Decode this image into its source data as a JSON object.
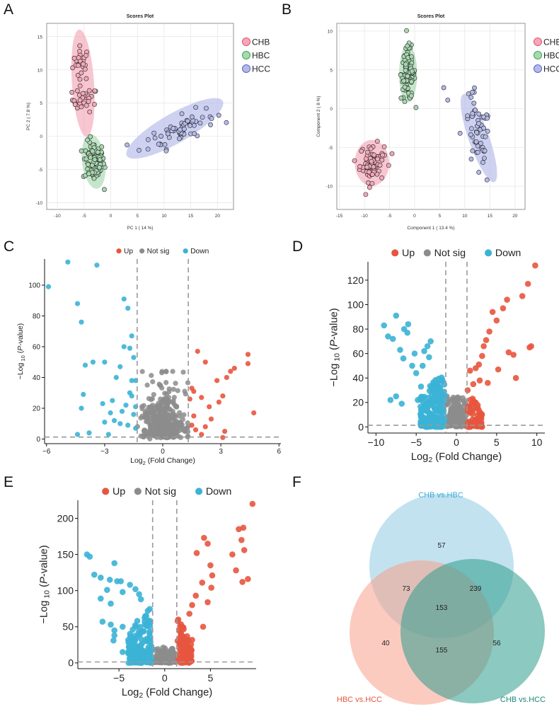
{
  "colors": {
    "chb": "#e8506e",
    "chb_fill": "#f2a8b8",
    "hbc": "#3aa655",
    "hbc_fill": "#a8d8b0",
    "hcc": "#5a66c8",
    "hcc_fill": "#b4bae8",
    "up": "#e8553e",
    "notsig": "#8c8c8c",
    "down": "#3bb2d6",
    "venn_a": "#8fcbe4",
    "venn_b": "#f7a08a",
    "venn_c": "#2e9c8c",
    "venn_a_text": "#3aaad8",
    "venn_b_text": "#e8553e",
    "venn_c_text": "#1a8878"
  },
  "chart_data": [
    {
      "panel": "A",
      "type": "scatter",
      "title": "Scores Plot",
      "xlabel": "PC 1 ( 14 %)",
      "ylabel": "PC 2 ( 7.8 %)",
      "xlim": [
        -12,
        23
      ],
      "ylim": [
        -11,
        17
      ],
      "xticks": [
        -10,
        -5,
        0,
        5,
        10,
        15,
        20
      ],
      "yticks": [
        -10,
        -5,
        0,
        5,
        10,
        15
      ],
      "legend": [
        "CHB",
        "HBC",
        "HCC"
      ],
      "groups": [
        {
          "name": "CHB",
          "clusters": [
            {
              "cx": -5.5,
              "cy": 11,
              "sx": 0.8,
              "sy": 1.3,
              "n": 26
            },
            {
              "cx": -4.8,
              "cy": 5.5,
              "sx": 1.2,
              "sy": 0.9,
              "n": 30
            }
          ],
          "ellipse": {
            "cx": -5.2,
            "cy": 8,
            "rx": 9,
            "ry": 2.3,
            "angle_deg": -85
          }
        },
        {
          "name": "HBC",
          "clusters": [
            {
              "cx": -3.2,
              "cy": -3.8,
              "sx": 1.0,
              "sy": 1.5,
              "n": 95
            }
          ],
          "ellipse": {
            "cx": -3.2,
            "cy": -3.8,
            "rx": 4.6,
            "ry": 2.4,
            "angle_deg": -80
          }
        },
        {
          "name": "HCC",
          "clusters": [
            {
              "cx": 13.5,
              "cy": 1.2,
              "sx": 3.0,
              "sy": 1.0,
              "n": 60,
              "tilt": 0.35
            }
          ],
          "ellipse": {
            "cx": 12,
            "cy": 1.2,
            "rx": 11,
            "ry": 2.6,
            "angle_deg": 24
          }
        }
      ],
      "outliers": [
        {
          "group": "HCC",
          "x": 5.3,
          "y": -2.1
        },
        {
          "group": "HCC",
          "x": 7,
          "y": -0.5
        },
        {
          "group": "HBC",
          "x": -1.2,
          "y": -8
        }
      ]
    },
    {
      "panel": "B",
      "type": "scatter",
      "title": "Scores Plot",
      "xlabel": "Component 1 ( 13.4 %)",
      "ylabel": "Component 2 ( 8 %)",
      "xlim": [
        -15.5,
        22
      ],
      "ylim": [
        -13,
        11
      ],
      "xticks": [
        -15,
        -10,
        -5,
        0,
        5,
        10,
        15,
        20
      ],
      "yticks": [
        -10,
        -5,
        0,
        5,
        10
      ],
      "legend": [
        "CHB",
        "HBC",
        "HCC"
      ],
      "groups": [
        {
          "name": "CHB",
          "clusters": [
            {
              "cx": -8.5,
              "cy": -7,
              "sx": 1.2,
              "sy": 1.2,
              "n": 75
            }
          ],
          "ellipse": {
            "cx": -8.5,
            "cy": -7,
            "rx": 3.8,
            "ry": 3.3,
            "angle_deg": 0
          }
        },
        {
          "name": "HBC",
          "clusters": [
            {
              "cx": -1.3,
              "cy": 4.5,
              "sx": 0.7,
              "sy": 1.7,
              "n": 95
            }
          ],
          "ellipse": {
            "cx": -1.3,
            "cy": 4.5,
            "rx": 2,
            "ry": 4.1,
            "angle_deg": 0
          }
        },
        {
          "name": "HCC",
          "clusters": [
            {
              "cx": 12.5,
              "cy": -3.5,
              "sx": 1.3,
              "sy": 2.7,
              "n": 55,
              "tilt": -0.8
            }
          ],
          "ellipse": {
            "cx": 12.8,
            "cy": -3.8,
            "rx": 7.2,
            "ry": 2.1,
            "angle_deg": -60
          }
        }
      ],
      "outliers": [
        {
          "group": "HCC",
          "x": 5.8,
          "y": 2.7
        },
        {
          "group": "HCC",
          "x": 6.6,
          "y": 1.1
        },
        {
          "group": "CHB",
          "x": -4.5,
          "y": -5.8
        }
      ]
    },
    {
      "panel": "C",
      "type": "volcano",
      "xlabel": "Log2 (Fold Change)",
      "ylabel": "−Log 10 (P-value)",
      "xlim": [
        -6.1,
        6.1
      ],
      "ylim": [
        -3,
        117
      ],
      "xticks": [
        -6,
        -3,
        0,
        3,
        6
      ],
      "yticks": [
        0,
        20,
        40,
        60,
        80,
        100
      ],
      "fc_threshold": 1.32,
      "p_threshold": 1.3,
      "legend": [
        "Up",
        "Not sig",
        "Down"
      ],
      "down": [
        [
          -5.9,
          99
        ],
        [
          -4.9,
          115
        ],
        [
          -4.4,
          88
        ],
        [
          -3.4,
          113
        ],
        [
          -4.2,
          76
        ],
        [
          -3.6,
          50
        ],
        [
          -4.1,
          29
        ],
        [
          -4.2,
          20
        ],
        [
          -3.8,
          4
        ],
        [
          -4.4,
          3
        ],
        [
          -4.0,
          48
        ],
        [
          -3.0,
          50
        ],
        [
          -3.1,
          23
        ],
        [
          -3.0,
          11
        ],
        [
          -2.0,
          91
        ],
        [
          -1.8,
          85
        ],
        [
          -1.7,
          59
        ],
        [
          -1.6,
          67
        ],
        [
          -1.5,
          53
        ],
        [
          -1.6,
          38
        ],
        [
          -1.7,
          30
        ],
        [
          -1.6,
          28
        ],
        [
          -2.0,
          60
        ],
        [
          -1.4,
          38
        ],
        [
          -2.2,
          47
        ],
        [
          -2.4,
          40
        ],
        [
          -1.9,
          22
        ],
        [
          -2.1,
          18
        ],
        [
          -2.2,
          10
        ],
        [
          -1.8,
          9
        ],
        [
          -2.5,
          12
        ],
        [
          -2.7,
          17
        ],
        [
          -2.6,
          25
        ],
        [
          -1.4,
          21
        ],
        [
          -1.5,
          16
        ],
        [
          -1.4,
          7
        ],
        [
          -2.8,
          3
        ]
      ],
      "up": [
        [
          1.8,
          57
        ],
        [
          2.2,
          50
        ],
        [
          2.8,
          38
        ],
        [
          3.3,
          40
        ],
        [
          3.5,
          44
        ],
        [
          3.7,
          46
        ],
        [
          4.4,
          55
        ],
        [
          4.4,
          49
        ],
        [
          4.7,
          17
        ],
        [
          3.1,
          28
        ],
        [
          2.4,
          21
        ],
        [
          2.9,
          24
        ],
        [
          1.6,
          31
        ],
        [
          1.5,
          33
        ],
        [
          1.4,
          26
        ],
        [
          2.0,
          27
        ],
        [
          1.6,
          15
        ],
        [
          1.5,
          9
        ],
        [
          2.0,
          3
        ],
        [
          2.2,
          8
        ],
        [
          3.2,
          5
        ],
        [
          3.1,
          1
        ],
        [
          2.5,
          13
        ],
        [
          1.7,
          6
        ]
      ],
      "notsig_cloud": {
        "n": 320,
        "xspread": 0.9,
        "ymax": 45
      }
    },
    {
      "panel": "D",
      "type": "volcano",
      "xlabel": "Log2 (Fold Change)",
      "ylabel": "−Log 10 ( P-value)",
      "xlim": [
        -11,
        11
      ],
      "ylim": [
        -5,
        135
      ],
      "xticks": [
        -10,
        -5,
        0,
        5,
        10
      ],
      "yticks": [
        0,
        20,
        40,
        60,
        80,
        100,
        120
      ],
      "fc_threshold": 1.32,
      "p_threshold": 1.3,
      "legend": [
        "Up",
        "Not sig",
        "Down"
      ],
      "down": [
        [
          -9,
          83
        ],
        [
          -8.5,
          74
        ],
        [
          -7.9,
          72
        ],
        [
          -7.5,
          91
        ],
        [
          -7,
          63
        ],
        [
          -6.5,
          80
        ],
        [
          -6.0,
          84
        ],
        [
          -6.1,
          77
        ],
        [
          -5.5,
          50
        ],
        [
          -5.2,
          60
        ],
        [
          -5.0,
          44
        ],
        [
          -4.8,
          22
        ],
        [
          -4.4,
          33
        ],
        [
          -4.2,
          50
        ],
        [
          -4.0,
          62
        ],
        [
          -3.6,
          66
        ],
        [
          -3.4,
          57
        ],
        [
          -3.2,
          70
        ],
        [
          -6.6,
          56
        ],
        [
          -7.5,
          25
        ],
        [
          -6.8,
          19
        ],
        [
          -8.2,
          22
        ]
      ],
      "down_cloud": {
        "n": 180,
        "xmin": -4.5,
        "xmax": -1.4,
        "ymax": 48
      },
      "up": [
        [
          9.8,
          132
        ],
        [
          8.9,
          117
        ],
        [
          8.2,
          107
        ],
        [
          6.3,
          104
        ],
        [
          5.8,
          97
        ],
        [
          5.0,
          87
        ],
        [
          4.5,
          94
        ],
        [
          4.1,
          78
        ],
        [
          3.7,
          71
        ],
        [
          3.4,
          66
        ],
        [
          3.2,
          58
        ],
        [
          2.8,
          51
        ],
        [
          2.4,
          48
        ],
        [
          9.3,
          66
        ],
        [
          9.1,
          65
        ],
        [
          7.1,
          59
        ],
        [
          6.5,
          61
        ],
        [
          7.4,
          40
        ],
        [
          5.2,
          47
        ],
        [
          3.9,
          36
        ],
        [
          1.7,
          46
        ],
        [
          2.9,
          38
        ],
        [
          1.4,
          30
        ],
        [
          2.1,
          35
        ]
      ],
      "up_cloud": {
        "n": 70,
        "xmin": 1.4,
        "xmax": 3.2,
        "ymax": 28
      },
      "notsig_cloud": {
        "n": 280,
        "xspread": 0.8,
        "ymax": 25
      }
    },
    {
      "panel": "E",
      "type": "volcano",
      "xlabel": "Log2 (Fold Change)",
      "ylabel": "−Log 10 (P-value)",
      "xlim": [
        -9.5,
        10
      ],
      "ylim": [
        -8,
        225
      ],
      "xticks": [
        -5,
        0,
        5
      ],
      "yticks": [
        0,
        50,
        100,
        150,
        200
      ],
      "fc_threshold": 1.32,
      "p_threshold": 1.3,
      "legend": [
        "Up",
        "Not sig",
        "Down"
      ],
      "down": [
        [
          -8.5,
          150
        ],
        [
          -8.2,
          147
        ],
        [
          -7.7,
          122
        ],
        [
          -7.0,
          118
        ],
        [
          -6.0,
          115
        ],
        [
          -5.5,
          138
        ],
        [
          -5.2,
          113
        ],
        [
          -4.8,
          113
        ],
        [
          -4.6,
          98
        ],
        [
          -3.8,
          108
        ],
        [
          -3.2,
          102
        ],
        [
          -2.8,
          95
        ],
        [
          -2.6,
          88
        ],
        [
          -6.3,
          101
        ],
        [
          -7.0,
          89
        ],
        [
          -5.9,
          82
        ],
        [
          -6.8,
          57
        ],
        [
          -5.9,
          53
        ],
        [
          -5.5,
          45
        ],
        [
          -4.6,
          50
        ],
        [
          -5.5,
          38
        ],
        [
          -5.6,
          31
        ],
        [
          -4.6,
          15
        ],
        [
          -3.0,
          58
        ]
      ],
      "down_cloud": {
        "n": 150,
        "xmin": -4.0,
        "xmax": -1.4,
        "ymax": 80
      },
      "up": [
        [
          9.6,
          220
        ],
        [
          8.6,
          187
        ],
        [
          8.1,
          185
        ],
        [
          8.4,
          170
        ],
        [
          8.7,
          156
        ],
        [
          9.1,
          116
        ],
        [
          8.5,
          112
        ],
        [
          7.4,
          150
        ],
        [
          7.8,
          128
        ],
        [
          4.7,
          165
        ],
        [
          4.3,
          173
        ],
        [
          3.5,
          152
        ],
        [
          5.0,
          135
        ],
        [
          5.2,
          121
        ],
        [
          4.1,
          111
        ],
        [
          5.1,
          104
        ],
        [
          4.7,
          84
        ],
        [
          3.4,
          93
        ],
        [
          3.0,
          80
        ],
        [
          2.7,
          68
        ],
        [
          4.2,
          50
        ]
      ],
      "up_cloud": {
        "n": 90,
        "xmin": 1.4,
        "xmax": 3.0,
        "ymax": 65
      },
      "notsig_cloud": {
        "n": 300,
        "xspread": 0.8,
        "ymax": 20
      }
    }
  ],
  "venn": {
    "panel": "F",
    "type": "venn",
    "sets": [
      "CHB vs.HBC",
      "HBC vs.HCC",
      "CHB vs.HCC"
    ],
    "counts": {
      "a_only": "57",
      "b_only": "40",
      "c_only": "56",
      "ab": "73",
      "ac": "239",
      "bc": "155",
      "abc": "153"
    }
  },
  "panel_letters": [
    "A",
    "B",
    "C",
    "D",
    "E",
    "F"
  ]
}
